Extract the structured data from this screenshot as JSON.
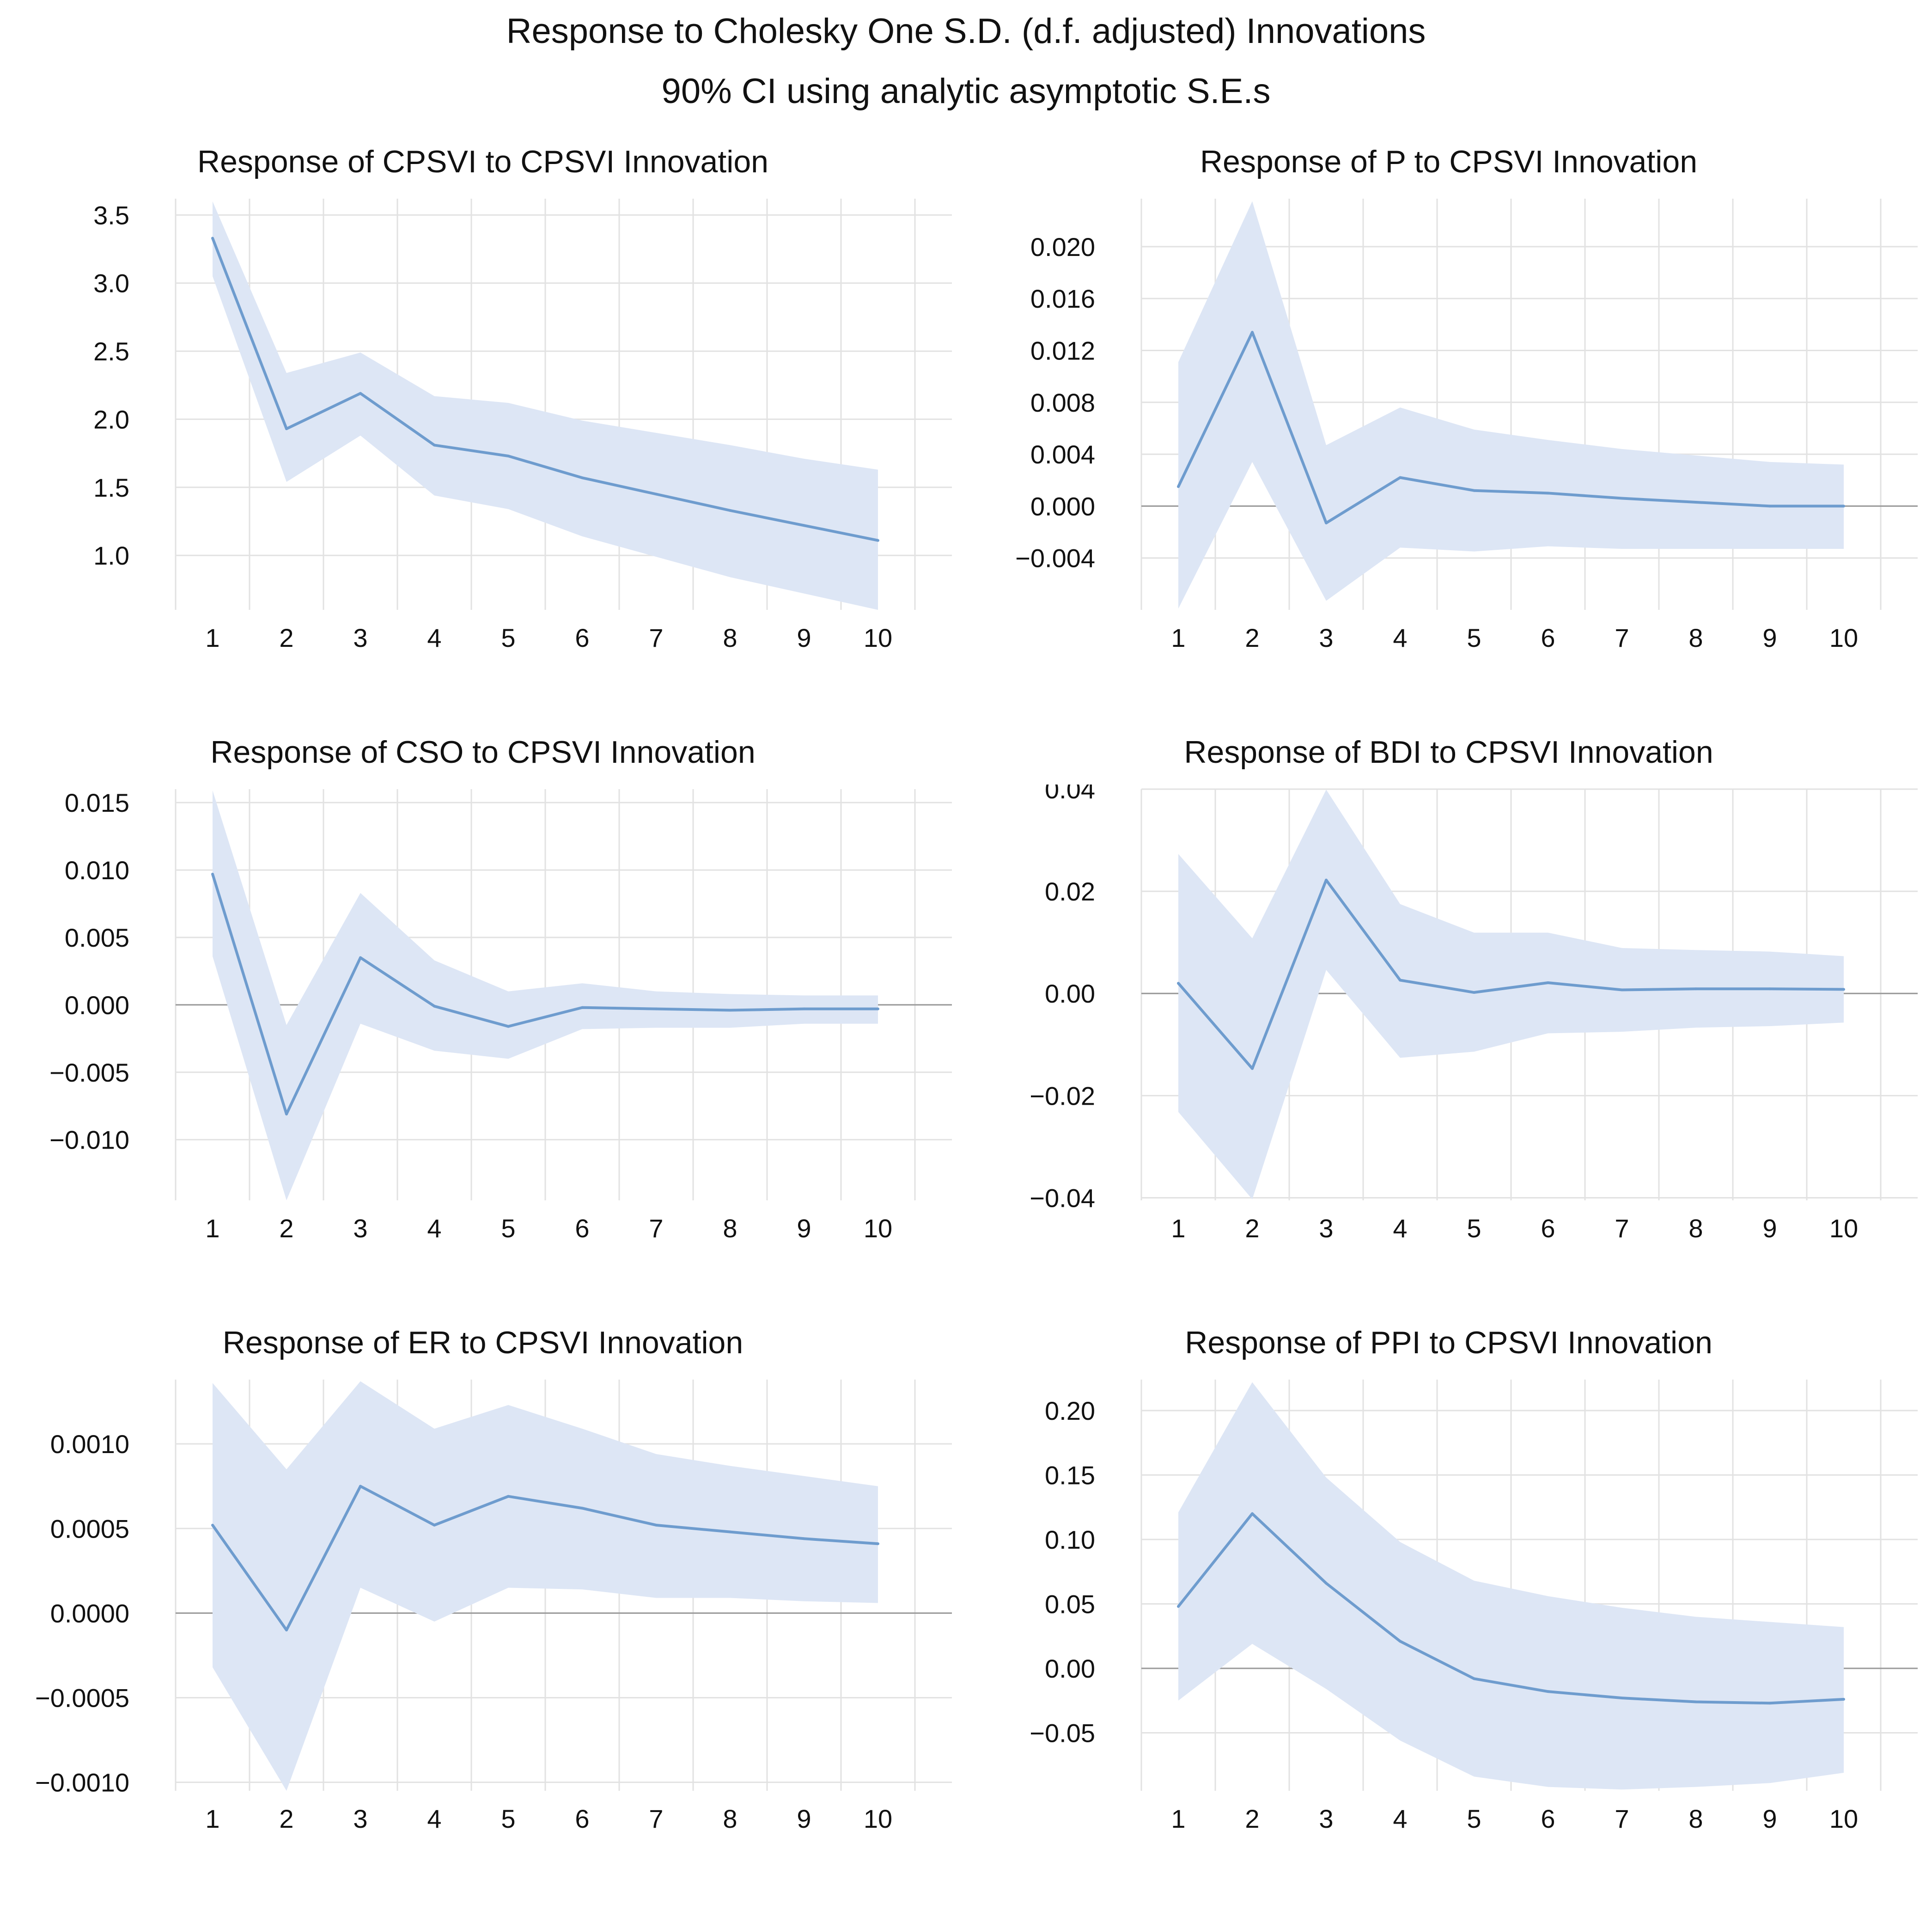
{
  "figure": {
    "title": "Response to Cholesky One S.D. (d.f. adjusted) Innovations",
    "subtitle": "90% CI using analytic asymptotic S.E.s"
  },
  "colors": {
    "line": "#6e9cce",
    "band": "#dde6f5",
    "grid": "#e2e2e2",
    "zero": "#999999"
  },
  "chart_data": [
    {
      "type": "line",
      "title": "Response of CPSVI to CPSVI Innovation",
      "x": [
        1,
        2,
        3,
        4,
        5,
        6,
        7,
        8,
        9,
        10
      ],
      "series": [
        {
          "name": "response",
          "values": [
            3.33,
            1.93,
            2.19,
            1.81,
            1.73,
            1.57,
            1.45,
            1.33,
            1.22,
            1.11
          ]
        },
        {
          "name": "upper 90% CI",
          "values": [
            3.6,
            2.34,
            2.49,
            2.17,
            2.12,
            1.99,
            1.9,
            1.81,
            1.71,
            1.63
          ]
        },
        {
          "name": "lower 90% CI",
          "values": [
            3.05,
            1.54,
            1.88,
            1.44,
            1.34,
            1.14,
            0.99,
            0.84,
            0.72,
            0.6
          ]
        }
      ],
      "yticks": [
        "3.5",
        "3.0",
        "2.5",
        "2.0",
        "1.5",
        "1.0"
      ],
      "ytick_values": [
        3.5,
        3.0,
        2.5,
        2.0,
        1.5,
        1.0
      ],
      "ylim": [
        0.6,
        3.62
      ],
      "zero_line": false
    },
    {
      "type": "line",
      "title": "Response of P to CPSVI Innovation",
      "x": [
        1,
        2,
        3,
        4,
        5,
        6,
        7,
        8,
        9,
        10
      ],
      "series": [
        {
          "name": "response",
          "values": [
            0.0015,
            0.0134,
            -0.0013,
            0.0022,
            0.0012,
            0.001,
            0.0006,
            0.0003,
            0.0,
            0.0
          ]
        },
        {
          "name": "upper 90% CI",
          "values": [
            0.0111,
            0.0235,
            0.0047,
            0.0076,
            0.0059,
            0.0051,
            0.0044,
            0.0039,
            0.0034,
            0.0032
          ]
        },
        {
          "name": "lower 90% CI",
          "values": [
            -0.0079,
            0.0034,
            -0.0073,
            -0.0032,
            -0.0035,
            -0.0031,
            -0.0033,
            -0.0033,
            -0.0033,
            -0.0033
          ]
        }
      ],
      "yticks": [
        "0.020",
        "0.016",
        "0.012",
        "0.008",
        "0.004",
        "0.000",
        "−0.004"
      ],
      "ytick_values": [
        0.02,
        0.016,
        0.012,
        0.008,
        0.004,
        0.0,
        -0.004
      ],
      "ylim": [
        -0.008,
        0.0237
      ],
      "zero_line": true
    },
    {
      "type": "line",
      "title": "Response of CSO to CPSVI Innovation",
      "x": [
        1,
        2,
        3,
        4,
        5,
        6,
        7,
        8,
        9,
        10
      ],
      "series": [
        {
          "name": "response",
          "values": [
            0.0097,
            -0.0081,
            0.0035,
            -0.0001,
            -0.0016,
            -0.0002,
            -0.0003,
            -0.0004,
            -0.0003,
            -0.0003
          ]
        },
        {
          "name": "upper 90% CI",
          "values": [
            0.0159,
            -0.0015,
            0.0083,
            0.0033,
            0.001,
            0.0016,
            0.001,
            0.0008,
            0.0007,
            0.0007
          ]
        },
        {
          "name": "lower 90% CI",
          "values": [
            0.0036,
            -0.0145,
            -0.0014,
            -0.0034,
            -0.004,
            -0.0018,
            -0.0017,
            -0.0017,
            -0.0014,
            -0.0014
          ]
        }
      ],
      "yticks": [
        "0.015",
        "0.010",
        "0.005",
        "0.000",
        "−0.005",
        "−0.010"
      ],
      "ytick_values": [
        0.015,
        0.01,
        0.005,
        0.0,
        -0.005,
        -0.01
      ],
      "ylim": [
        -0.0145,
        0.016
      ],
      "zero_line": true
    },
    {
      "type": "line",
      "title": "Response of BDI to CPSVI Innovation",
      "x": [
        1,
        2,
        3,
        4,
        5,
        6,
        7,
        8,
        9,
        10
      ],
      "series": [
        {
          "name": "response",
          "values": [
            0.002,
            -0.0147,
            0.0222,
            0.0026,
            0.0002,
            0.0021,
            0.0007,
            0.0009,
            0.0009,
            0.0008
          ]
        },
        {
          "name": "upper 90% CI",
          "values": [
            0.0273,
            0.0108,
            0.0399,
            0.0175,
            0.0119,
            0.0119,
            0.0089,
            0.0085,
            0.0082,
            0.0073
          ]
        },
        {
          "name": "lower 90% CI",
          "values": [
            -0.0232,
            -0.0403,
            0.0046,
            -0.0126,
            -0.0114,
            -0.0078,
            -0.0075,
            -0.0067,
            -0.0064,
            -0.0057
          ]
        }
      ],
      "yticks": [
        "0.04",
        "0.02",
        "0.00",
        "−0.02",
        "−0.04"
      ],
      "ytick_values": [
        0.04,
        0.02,
        0.0,
        -0.02,
        -0.04
      ],
      "ylim": [
        -0.0405,
        0.04
      ],
      "zero_line": true
    },
    {
      "type": "line",
      "title": "Response of ER to CPSVI Innovation",
      "x": [
        1,
        2,
        3,
        4,
        5,
        6,
        7,
        8,
        9,
        10
      ],
      "series": [
        {
          "name": "response",
          "values": [
            0.00052,
            -0.0001,
            0.00075,
            0.00052,
            0.00069,
            0.00062,
            0.00052,
            0.00048,
            0.00044,
            0.00041
          ]
        },
        {
          "name": "upper 90% CI",
          "values": [
            0.00136,
            0.00085,
            0.00137,
            0.00109,
            0.00123,
            0.00109,
            0.00094,
            0.00087,
            0.00081,
            0.00075
          ]
        },
        {
          "name": "lower 90% CI",
          "values": [
            -0.00032,
            -0.00105,
            0.00015,
            -5e-05,
            0.00015,
            0.00014,
            9e-05,
            9e-05,
            7e-05,
            6e-05
          ]
        }
      ],
      "yticks": [
        "0.0010",
        "0.0005",
        "0.0000",
        "−0.0005",
        "−0.0010"
      ],
      "ytick_values": [
        0.001,
        0.0005,
        0.0,
        -0.0005,
        -0.001
      ],
      "ylim": [
        -0.00105,
        0.00138
      ],
      "zero_line": true
    },
    {
      "type": "line",
      "title": "Response of PPI to CPSVI Innovation",
      "x": [
        1,
        2,
        3,
        4,
        5,
        6,
        7,
        8,
        9,
        10
      ],
      "series": [
        {
          "name": "response",
          "values": [
            0.048,
            0.12,
            0.066,
            0.021,
            -0.008,
            -0.018,
            -0.023,
            -0.026,
            -0.027,
            -0.024
          ]
        },
        {
          "name": "upper 90% CI",
          "values": [
            0.121,
            0.222,
            0.148,
            0.098,
            0.068,
            0.056,
            0.047,
            0.04,
            0.036,
            0.032
          ]
        },
        {
          "name": "lower 90% CI",
          "values": [
            -0.025,
            0.019,
            -0.016,
            -0.056,
            -0.084,
            -0.092,
            -0.094,
            -0.092,
            -0.089,
            -0.081
          ]
        }
      ],
      "yticks": [
        "0.20",
        "0.15",
        "0.10",
        "0.05",
        "0.00",
        "−0.05"
      ],
      "ytick_values": [
        0.2,
        0.15,
        0.1,
        0.05,
        0.0,
        -0.05
      ],
      "ylim": [
        -0.095,
        0.224
      ],
      "zero_line": true
    }
  ]
}
